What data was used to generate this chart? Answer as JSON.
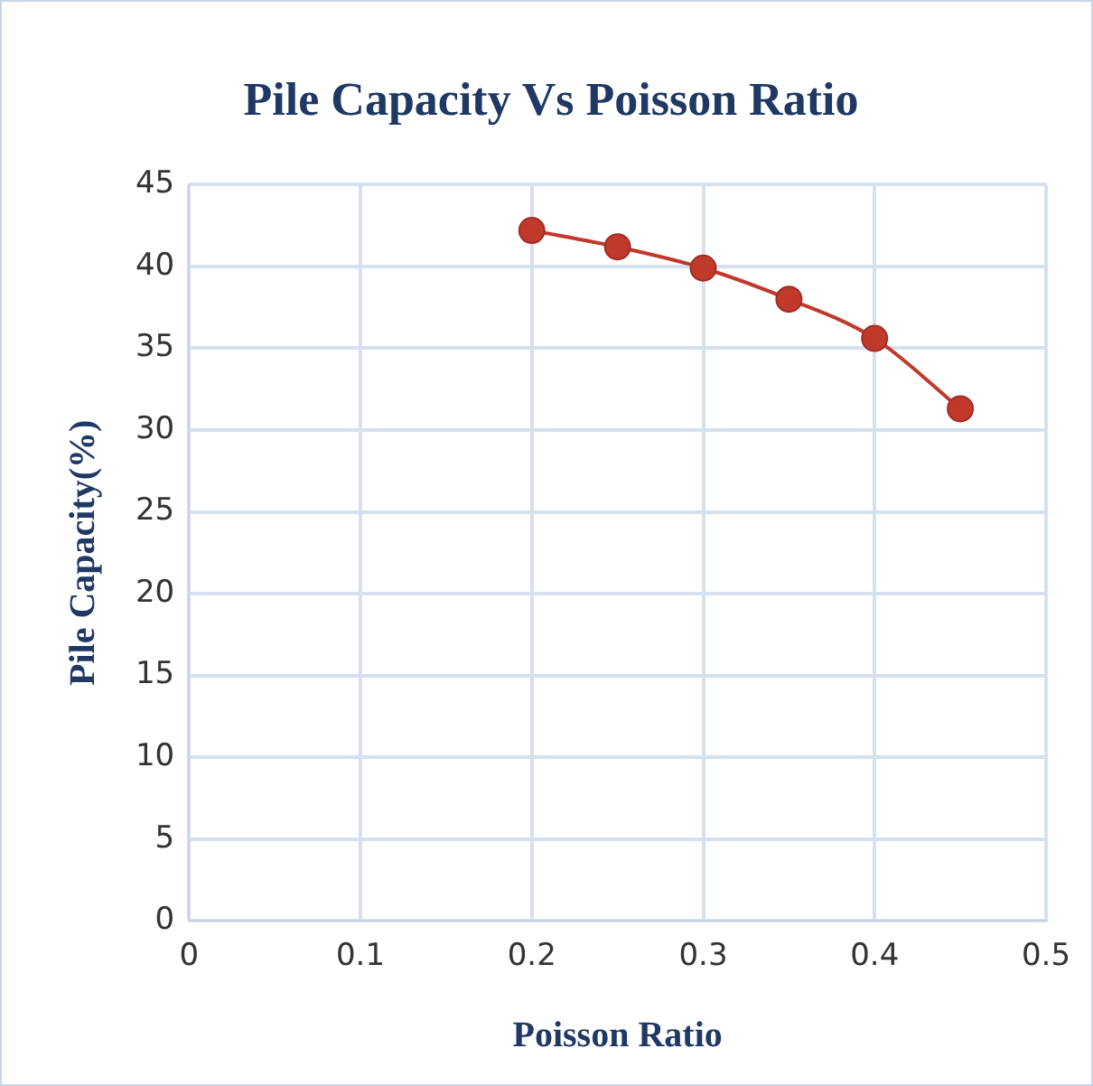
{
  "chart_data": {
    "type": "line",
    "title": "Pile Capacity Vs Poisson Ratio",
    "xlabel": "Poisson Ratio",
    "ylabel": "Pile Capacity(%)",
    "x": [
      0.2,
      0.25,
      0.3,
      0.35,
      0.4,
      0.45
    ],
    "series": [
      {
        "color": "#c0392b",
        "values": [
          42.2,
          41.2,
          39.9,
          38.0,
          35.6,
          31.3
        ]
      }
    ],
    "xlim": [
      0,
      0.5
    ],
    "xticks": [
      0,
      0.1,
      0.2,
      0.3,
      0.4,
      0.5
    ],
    "ylim": [
      0,
      45
    ],
    "yticks": [
      0,
      5,
      10,
      15,
      20,
      25,
      30,
      35,
      40,
      45
    ],
    "grid": true,
    "legend": false,
    "marker": "circle",
    "line_style": "solid"
  }
}
